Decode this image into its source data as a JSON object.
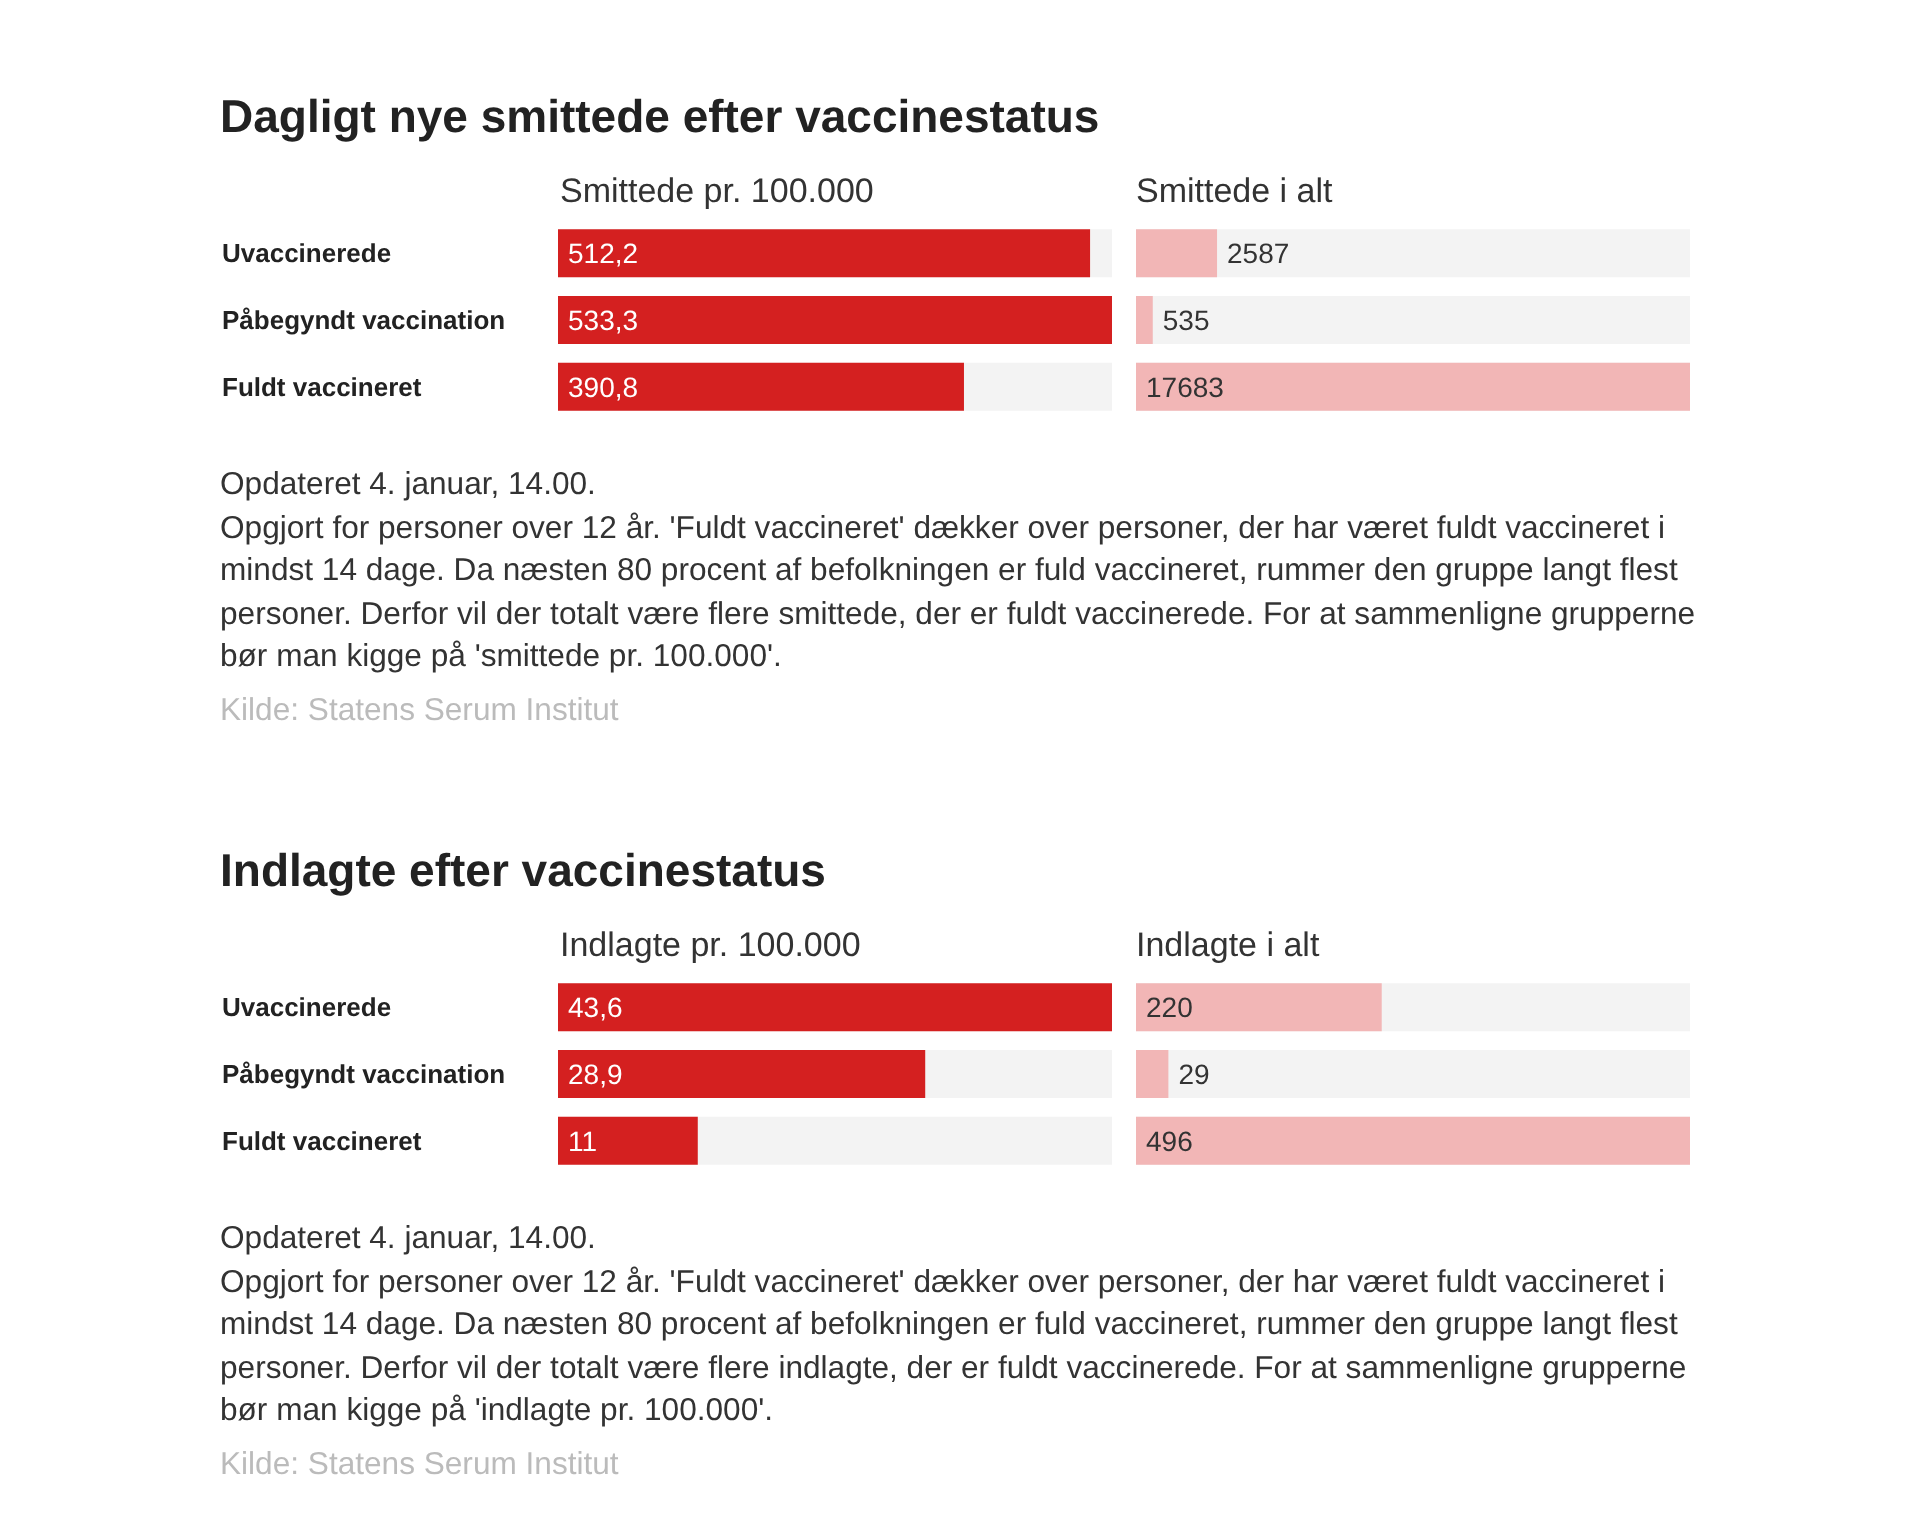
{
  "chart_data": [
    {
      "type": "bar",
      "orientation": "horizontal",
      "title": "Dagligt nye smittede efter vaccinestatus",
      "subtitle": "Smittede pr. 100.000",
      "categories": [
        "Uvaccinerede",
        "Påbegyndt vaccination",
        "Fuldt vaccineret"
      ],
      "series": [
        {
          "color": "#d42020",
          "values": [
            512.2,
            533.3,
            390.8
          ],
          "value_labels": [
            "512,2",
            "533,3",
            "390,8"
          ]
        }
      ],
      "tick_labels": "y",
      "annotations": [
        "Opdateret 4. januar, 14.00.",
        "Opgjort for personer over 12 år. 'Fuldt vaccineret' dækker over personer, der har været fuldt vaccineret i mindst 14 dage. Da næsten 80 procent af befolkningen er fuld vaccineret, rummer den gruppe langt flest personer. Derfor vil der totalt være flere smittede, der er fuldt vaccinerede. For at sammenligne grupperne bør man kigge på 'smittede pr. 100.000'.",
        "Kilde: Statens Serum Institut"
      ]
    },
    {
      "type": "bar",
      "orientation": "horizontal",
      "subtitle": "Smittede i alt",
      "categories": [
        null,
        null,
        null
      ],
      "series": [
        {
          "color": "#f2b6b6",
          "values": [
            2587,
            535,
            17683
          ]
        }
      ],
      "data_labels": true,
      "tick_labels": false
    },
    {
      "type": "bar",
      "orientation": "horizontal",
      "title": "Indlagte efter vaccinestatus",
      "subtitle": "Indlagte pr. 100.000",
      "categories": [
        "Uvaccinerede",
        "Påbegyndt vaccination",
        "Fuldt vaccineret"
      ],
      "series": [
        {
          "color": "#d42020",
          "values": [
            43.6,
            28.9,
            11
          ],
          "value_labels": [
            "43,6",
            "28,9",
            "11"
          ]
        }
      ],
      "tick_labels": "y",
      "annotations": [
        "Opdateret 4. januar, 14.00.",
        "Opgjort for personer over 12 år. 'Fuldt vaccineret' dækker over personer, der har været fuldt vaccineret i mindst 14 dage. Da næsten 80 procent af befolkningen er fuld vaccineret, rummer den gruppe langt flest personer. Derfor vil der totalt være flere indlagte, der er fuldt vaccinerede. For at sammenligne grupperne bør man kigge på 'indlagte pr. 100.000'.",
        "Kilde: Statens Serum Institut"
      ]
    },
    {
      "type": "bar",
      "orientation": "horizontal",
      "subtitle": "Indlagte i alt",
      "categories": [
        null,
        null,
        null
      ],
      "series": [
        {
          "color": "#f2b6b6",
          "values": [
            220,
            29,
            496
          ]
        }
      ],
      "data_labels": true,
      "tick_labels": false
    }
  ]
}
